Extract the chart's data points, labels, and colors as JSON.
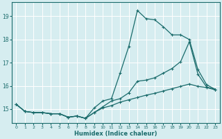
{
  "xlabel": "Humidex (Indice chaleur)",
  "bg_color": "#d6edf0",
  "line_color": "#1a6b6b",
  "grid_color": "#ffffff",
  "xmin": -0.5,
  "xmax": 23.5,
  "ymin": 14.4,
  "ymax": 19.6,
  "yticks": [
    15,
    16,
    17,
    18,
    19
  ],
  "xticks": [
    0,
    1,
    2,
    3,
    4,
    5,
    6,
    7,
    8,
    9,
    10,
    11,
    12,
    13,
    14,
    15,
    16,
    17,
    18,
    19,
    20,
    21,
    22,
    23
  ],
  "line1_y": [
    15.2,
    14.9,
    14.85,
    14.85,
    14.8,
    14.8,
    14.65,
    14.7,
    14.6,
    15.05,
    15.35,
    15.45,
    16.55,
    17.7,
    19.25,
    18.9,
    18.85,
    18.55,
    18.2,
    18.2,
    18.0,
    16.7,
    16.05,
    15.85
  ],
  "line2_y": [
    15.2,
    14.9,
    14.85,
    14.85,
    14.8,
    14.8,
    14.65,
    14.7,
    14.6,
    14.85,
    15.1,
    15.35,
    15.45,
    15.7,
    16.2,
    16.25,
    16.35,
    16.55,
    16.75,
    17.05,
    17.9,
    16.5,
    15.95,
    15.85
  ],
  "line3_y": [
    15.2,
    14.9,
    14.85,
    14.85,
    14.8,
    14.8,
    14.65,
    14.7,
    14.6,
    14.85,
    15.05,
    15.15,
    15.3,
    15.4,
    15.5,
    15.6,
    15.68,
    15.78,
    15.88,
    15.98,
    16.08,
    15.98,
    15.93,
    15.83
  ]
}
